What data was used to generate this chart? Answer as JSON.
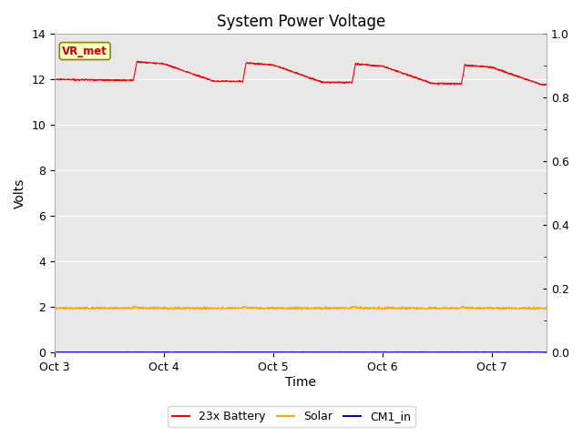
{
  "title": "System Power Voltage",
  "xlabel": "Time",
  "ylabel": "Volts",
  "xlim": [
    0,
    4.5
  ],
  "ylim_left": [
    0,
    14
  ],
  "ylim_right": [
    0.0,
    1.0
  ],
  "yticks_left": [
    0,
    2,
    4,
    6,
    8,
    10,
    12,
    14
  ],
  "yticks_right": [
    0.0,
    0.2,
    0.4,
    0.6,
    0.8,
    1.0
  ],
  "x_tick_labels": [
    "Oct 3",
    "Oct 4",
    "Oct 5",
    "Oct 6",
    "Oct 7"
  ],
  "x_tick_positions": [
    0,
    1,
    2,
    3,
    4
  ],
  "figure_bg": "#ffffff",
  "plot_bg": "#e8e8e8",
  "grid_color": "#ffffff",
  "vr_met_label": "VR_met",
  "vr_met_bg": "#ffffcc",
  "vr_met_border": "#888800",
  "vr_met_color": "#cc0000",
  "legend_entries": [
    "23x Battery",
    "Solar",
    "CM1_in"
  ],
  "legend_colors": [
    "#ff0000",
    "#ffaa00",
    "#0000ee"
  ],
  "battery_base": 12.0,
  "solar_base": 1.95,
  "cm1_base": 0.01,
  "spike_times": [
    0.72,
    1.72,
    2.72,
    3.72
  ],
  "spike_height": 0.82
}
